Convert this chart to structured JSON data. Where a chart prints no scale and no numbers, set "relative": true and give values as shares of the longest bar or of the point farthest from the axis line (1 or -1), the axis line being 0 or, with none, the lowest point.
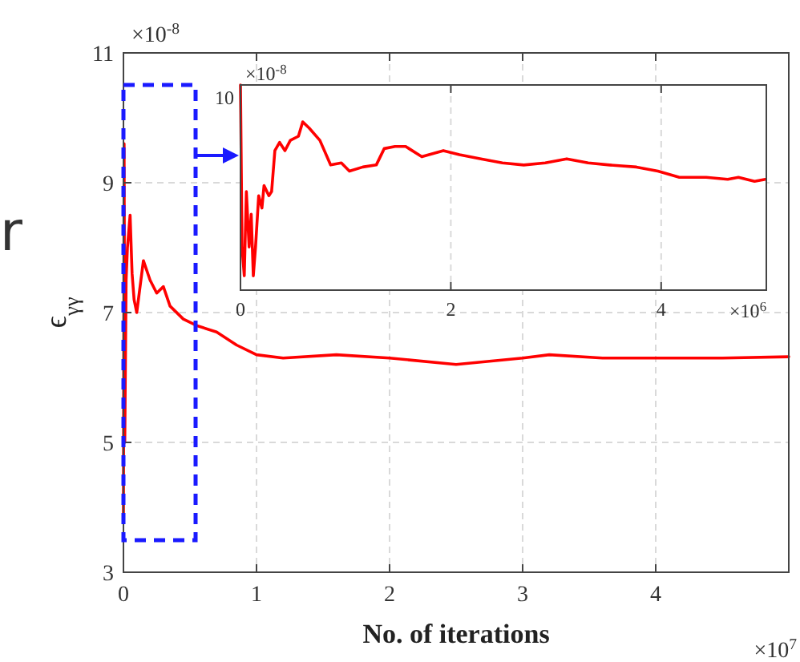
{
  "chart_data": [
    {
      "type": "line",
      "xlabel": "No. of iterations",
      "ylabel": "ϵ$_{γγ}$",
      "xlim": [
        0,
        5
      ],
      "ylim": [
        3,
        11
      ],
      "xticks": [
        0,
        1,
        2,
        3,
        4
      ],
      "yticks": [
        3,
        5,
        7,
        9,
        11
      ],
      "grid": true,
      "line_style": "solid",
      "annotations": [
        "×10$^{-8}$",
        "×10$^{7}$",
        "r"
      ],
      "series": [
        {
          "color": "#ff0000",
          "x": [
            0,
            0.005,
            0.01,
            0.02,
            0.03,
            0.05,
            0.065,
            0.08,
            0.1,
            0.15,
            0.2,
            0.25,
            0.3,
            0.35,
            0.45,
            0.55,
            0.7,
            0.85,
            1.0,
            1.2,
            1.6,
            2.0,
            2.5,
            3.0,
            3.2,
            3.6,
            4.0,
            4.5,
            5.0
          ],
          "values": [
            3.9,
            9.6,
            5.0,
            7.5,
            8.0,
            8.5,
            7.6,
            7.2,
            7.0,
            7.8,
            7.5,
            7.3,
            7.4,
            7.1,
            6.9,
            6.8,
            6.7,
            6.5,
            6.35,
            6.3,
            6.35,
            6.3,
            6.2,
            6.3,
            6.35,
            6.3,
            6.3,
            6.3,
            6.32
          ]
        }
      ]
    },
    {
      "type": "line",
      "relative": true,
      "xlim": [
        0,
        5
      ],
      "xticks": [
        0,
        2,
        4
      ],
      "grid": "x",
      "line_style": "solid",
      "annotations": [
        "10",
        "×10$^{-8}$",
        "×10$^{6}$"
      ],
      "series": [
        {
          "color": "#ff0000",
          "x": [
            0,
            0.015,
            0.036,
            0.056,
            0.082,
            0.102,
            0.122,
            0.143,
            0.173,
            0.204,
            0.224,
            0.27,
            0.296,
            0.327,
            0.372,
            0.423,
            0.474,
            0.551,
            0.592,
            0.653,
            0.755,
            0.857,
            0.959,
            1.036,
            1.163,
            1.291,
            1.367,
            1.469,
            1.571,
            1.724,
            1.929,
            2.082,
            2.286,
            2.49,
            2.694,
            2.898,
            3.102,
            3.306,
            3.51,
            3.765,
            3.969,
            4.173,
            4.429,
            4.633,
            4.735,
            4.888,
            4.99
          ],
          "values": [
            1,
            0.21,
            0.07,
            0.48,
            0.21,
            0.37,
            0.07,
            0.21,
            0.46,
            0.4,
            0.51,
            0.46,
            0.48,
            0.68,
            0.72,
            0.68,
            0.73,
            0.75,
            0.82,
            0.79,
            0.73,
            0.61,
            0.62,
            0.58,
            0.6,
            0.61,
            0.69,
            0.7,
            0.7,
            0.65,
            0.68,
            0.66,
            0.64,
            0.62,
            0.61,
            0.62,
            0.64,
            0.62,
            0.61,
            0.6,
            0.58,
            0.55,
            0.55,
            0.54,
            0.55,
            0.53,
            0.54
          ]
        }
      ]
    }
  ]
}
